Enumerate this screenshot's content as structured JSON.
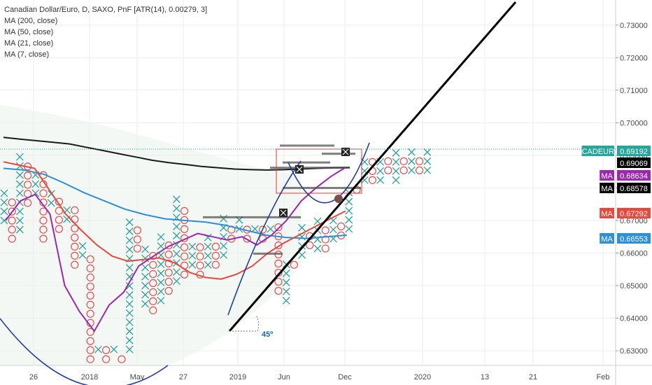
{
  "header": {
    "title": "Canadian Dollar/Euro, D, SAXO, PnF [ATR(14), 0.00279, 3]",
    "indicators": [
      "MA (200, close)",
      "MA (50, close)",
      "MA (21, close)",
      "MA (7, close)"
    ]
  },
  "colors": {
    "ma200": "#1a1a1a",
    "ma50": "#2d8fd6",
    "ma21": "#e8473c",
    "ma7": "#9c27b0",
    "x_box": "#2ba39a",
    "o_box": "#e35757",
    "trend": "#000000",
    "channel": "#1f3f9f"
  },
  "chart_data": {
    "type": "pnf",
    "ylim": [
      0.6255,
      0.7377
    ],
    "x_ticks": [
      "26",
      "2018",
      "May",
      "27",
      "2019",
      "Jun",
      "Dec",
      "2020",
      "13",
      "21",
      "Feb"
    ],
    "y_ticks": [
      "0.73000",
      "0.72000",
      "0.71000",
      "0.70000",
      "0.69000",
      "0.68000",
      "0.67000",
      "0.66000",
      "0.65000",
      "0.64000",
      "0.63000"
    ],
    "price_badges": [
      {
        "label": "CADEUR",
        "value": "0.69192",
        "color": "#26a69a"
      },
      {
        "label": "",
        "value": "0.69069",
        "color": "#000000"
      },
      {
        "label": "MA",
        "value": "0.68634",
        "color": "#9c27b0"
      },
      {
        "label": "MA",
        "value": "0.68578",
        "color": "#000000"
      },
      {
        "label": "MA",
        "value": "0.67292",
        "color": "#e8473c"
      },
      {
        "label": "MA",
        "value": "0.66553",
        "color": "#2d8fd6"
      }
    ],
    "columns": [
      {
        "type": "X",
        "low": 0.6686,
        "high": 0.68
      },
      {
        "type": "O",
        "low": 0.663,
        "high": 0.677
      },
      {
        "type": "X",
        "low": 0.6658,
        "high": 0.692
      },
      {
        "type": "O",
        "low": 0.674,
        "high": 0.689
      },
      {
        "type": "X",
        "low": 0.677,
        "high": 0.686
      },
      {
        "type": "O",
        "low": 0.663,
        "high": 0.686
      },
      {
        "type": "X",
        "low": 0.674,
        "high": 0.68
      },
      {
        "type": "O",
        "low": 0.666,
        "high": 0.677
      },
      {
        "type": "X",
        "low": 0.669,
        "high": 0.674
      },
      {
        "type": "O",
        "low": 0.655,
        "high": 0.674
      },
      {
        "type": "X",
        "low": 0.658,
        "high": 0.663
      },
      {
        "type": "O",
        "low": 0.626,
        "high": 0.66
      },
      {
        "type": "X",
        "low": 0.629,
        "high": 0.632
      },
      {
        "type": "O",
        "low": 0.626,
        "high": 0.632
      },
      {
        "type": "X",
        "low": 0.629,
        "high": 0.632
      },
      {
        "type": "O",
        "low": 0.626,
        "high": 0.63
      },
      {
        "type": "X",
        "low": 0.629,
        "high": 0.671
      },
      {
        "type": "O",
        "low": 0.66,
        "high": 0.669
      },
      {
        "type": "X",
        "low": 0.643,
        "high": 0.663
      },
      {
        "type": "O",
        "low": 0.641,
        "high": 0.66
      },
      {
        "type": "X",
        "low": 0.644,
        "high": 0.666
      },
      {
        "type": "O",
        "low": 0.647,
        "high": 0.663
      },
      {
        "type": "X",
        "low": 0.65,
        "high": 0.677
      },
      {
        "type": "O",
        "low": 0.652,
        "high": 0.674
      },
      {
        "type": "X",
        "low": 0.655,
        "high": 0.664
      },
      {
        "type": "O",
        "low": 0.652,
        "high": 0.664
      },
      {
        "type": "X",
        "low": 0.655,
        "high": 0.666
      },
      {
        "type": "O",
        "low": 0.655,
        "high": 0.663
      },
      {
        "type": "X",
        "low": 0.658,
        "high": 0.672
      },
      {
        "type": "O",
        "low": 0.663,
        "high": 0.669
      },
      {
        "type": "X",
        "low": 0.666,
        "high": 0.672
      },
      {
        "type": "O",
        "low": 0.663,
        "high": 0.669
      },
      {
        "type": "X",
        "low": 0.666,
        "high": 0.669
      },
      {
        "type": "O",
        "low": 0.663,
        "high": 0.669
      },
      {
        "type": "X",
        "low": 0.666,
        "high": 0.669
      },
      {
        "type": "O",
        "low": 0.647,
        "high": 0.669
      },
      {
        "type": "X",
        "low": 0.644,
        "high": 0.658
      },
      {
        "type": "O",
        "low": 0.655,
        "high": 0.658
      },
      {
        "type": "X",
        "low": 0.658,
        "high": 0.669
      },
      {
        "type": "O",
        "low": 0.661,
        "high": 0.666
      },
      {
        "type": "X",
        "low": 0.66,
        "high": 0.672
      },
      {
        "type": "O",
        "low": 0.66,
        "high": 0.669
      },
      {
        "type": "X",
        "low": 0.663,
        "high": 0.672
      },
      {
        "type": "O",
        "low": 0.664,
        "high": 0.669
      },
      {
        "type": "X",
        "low": 0.666,
        "high": 0.681
      },
      {
        "type": "O",
        "low": 0.678,
        "high": 0.681
      },
      {
        "type": "X",
        "low": 0.681,
        "high": 0.689
      },
      {
        "type": "O",
        "low": 0.681,
        "high": 0.689
      },
      {
        "type": "X",
        "low": 0.681,
        "high": 0.689
      },
      {
        "type": "O",
        "low": 0.684,
        "high": 0.689
      },
      {
        "type": "X",
        "low": 0.681,
        "high": 0.692
      },
      {
        "type": "O",
        "low": 0.684,
        "high": 0.689
      },
      {
        "type": "X",
        "low": 0.684,
        "high": 0.692
      },
      {
        "type": "O",
        "low": 0.684,
        "high": 0.689
      },
      {
        "type": "X",
        "low": 0.684,
        "high": 0.692
      }
    ],
    "moving_averages": [
      {
        "name": "MA (200, close)",
        "values": [
          0.6955,
          0.695,
          0.6945,
          0.694,
          0.6935,
          0.6925,
          0.6915,
          0.6905,
          0.6895,
          0.6885,
          0.6878,
          0.6872,
          0.6866,
          0.6862,
          0.6858,
          0.6856,
          0.6855,
          0.6856,
          0.6858,
          0.686,
          0.6862,
          0.6863
        ]
      },
      {
        "name": "MA (50, close)",
        "values": [
          0.686,
          0.6855,
          0.6842,
          0.6815,
          0.6785,
          0.676,
          0.6735,
          0.6718,
          0.6705,
          0.67,
          0.6695,
          0.6685,
          0.667,
          0.6655,
          0.6648,
          0.6645,
          0.665,
          0.6655
        ]
      },
      {
        "name": "MA (21, close)",
        "values": [
          0.688,
          0.687,
          0.686,
          0.679,
          0.672,
          0.667,
          0.6625,
          0.659,
          0.6575,
          0.658,
          0.6585,
          0.657,
          0.654,
          0.6525,
          0.652,
          0.6535,
          0.656,
          0.66,
          0.663,
          0.6655,
          0.668,
          0.6705,
          0.6729
        ]
      },
      {
        "name": "MA (7, close)",
        "values": [
          0.67,
          0.676,
          0.678,
          0.672,
          0.65,
          0.642,
          0.636,
          0.644,
          0.648,
          0.656,
          0.659,
          0.662,
          0.664,
          0.666,
          0.665,
          0.664,
          0.665,
          0.6625,
          0.6655,
          0.67,
          0.676,
          0.68,
          0.6835,
          0.6863
        ]
      }
    ],
    "annotations": [
      "45º"
    ]
  }
}
